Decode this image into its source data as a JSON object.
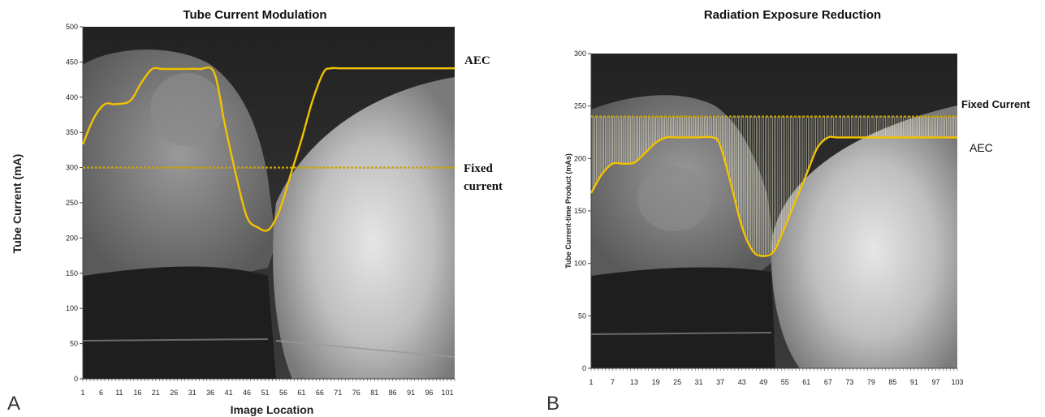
{
  "colors": {
    "aec_line": "#f2c200",
    "fixed_line": "#c8a400",
    "hatch": "#f4efd0"
  },
  "panels": {
    "a": {
      "letter": "A"
    },
    "b": {
      "letter": "B"
    }
  },
  "chart_data": [
    {
      "type": "line",
      "title": "Tube Current Modulation",
      "xlabel": "Image Location",
      "ylabel": "Tube Current (mA)",
      "ylim": [
        0,
        500
      ],
      "yticks": [
        0,
        50,
        100,
        150,
        200,
        250,
        300,
        350,
        400,
        450,
        500
      ],
      "xlim": [
        1,
        103
      ],
      "xticks": [
        1,
        6,
        11,
        16,
        21,
        26,
        31,
        36,
        41,
        46,
        51,
        56,
        61,
        66,
        71,
        76,
        81,
        86,
        91,
        96,
        101
      ],
      "background": "radiograph",
      "series": [
        {
          "name": "AEC",
          "x": [
            1,
            4,
            7,
            10,
            14,
            17,
            20,
            23,
            28,
            33,
            37,
            40,
            43,
            46,
            49,
            52,
            55,
            58,
            61,
            64,
            67,
            69,
            72,
            80,
            90,
            103
          ],
          "values": [
            333,
            370,
            390,
            390,
            395,
            420,
            440,
            440,
            440,
            440,
            435,
            360,
            290,
            230,
            215,
            212,
            240,
            290,
            340,
            395,
            435,
            441,
            441,
            441,
            441,
            441
          ]
        },
        {
          "name": "Fixed current",
          "x": [
            1,
            103
          ],
          "values": [
            300,
            300
          ]
        }
      ],
      "annotations": {
        "aec": "AEC",
        "fixed_line1": "Fixed",
        "fixed_line2": "current"
      }
    },
    {
      "type": "line",
      "title": "Radiation Exposure Reduction",
      "ylabel": "Tube Current-time Product (mAs)",
      "ylim": [
        0,
        300
      ],
      "yticks": [
        0,
        50,
        100,
        150,
        200,
        250,
        300
      ],
      "xlim": [
        1,
        103
      ],
      "xticks": [
        1,
        7,
        13,
        19,
        25,
        31,
        37,
        43,
        49,
        55,
        61,
        67,
        73,
        79,
        85,
        91,
        97,
        103
      ],
      "background": "radiograph",
      "shaded_between": "Fixed Current and AEC",
      "series": [
        {
          "name": "AEC",
          "x": [
            1,
            4,
            7,
            10,
            13,
            16,
            19,
            22,
            25,
            30,
            35,
            37,
            40,
            43,
            46,
            49,
            52,
            55,
            58,
            61,
            64,
            67,
            70,
            80,
            90,
            103
          ],
          "values": [
            167,
            185,
            195,
            195,
            196,
            205,
            215,
            220,
            220,
            220,
            220,
            212,
            175,
            135,
            112,
            107,
            112,
            135,
            160,
            185,
            210,
            220,
            220,
            220,
            220,
            220
          ]
        },
        {
          "name": "Fixed Current",
          "x": [
            1,
            103
          ],
          "values": [
            240,
            240
          ]
        }
      ],
      "annotations": {
        "fixed": "Fixed Current",
        "aec": "AEC"
      }
    }
  ]
}
